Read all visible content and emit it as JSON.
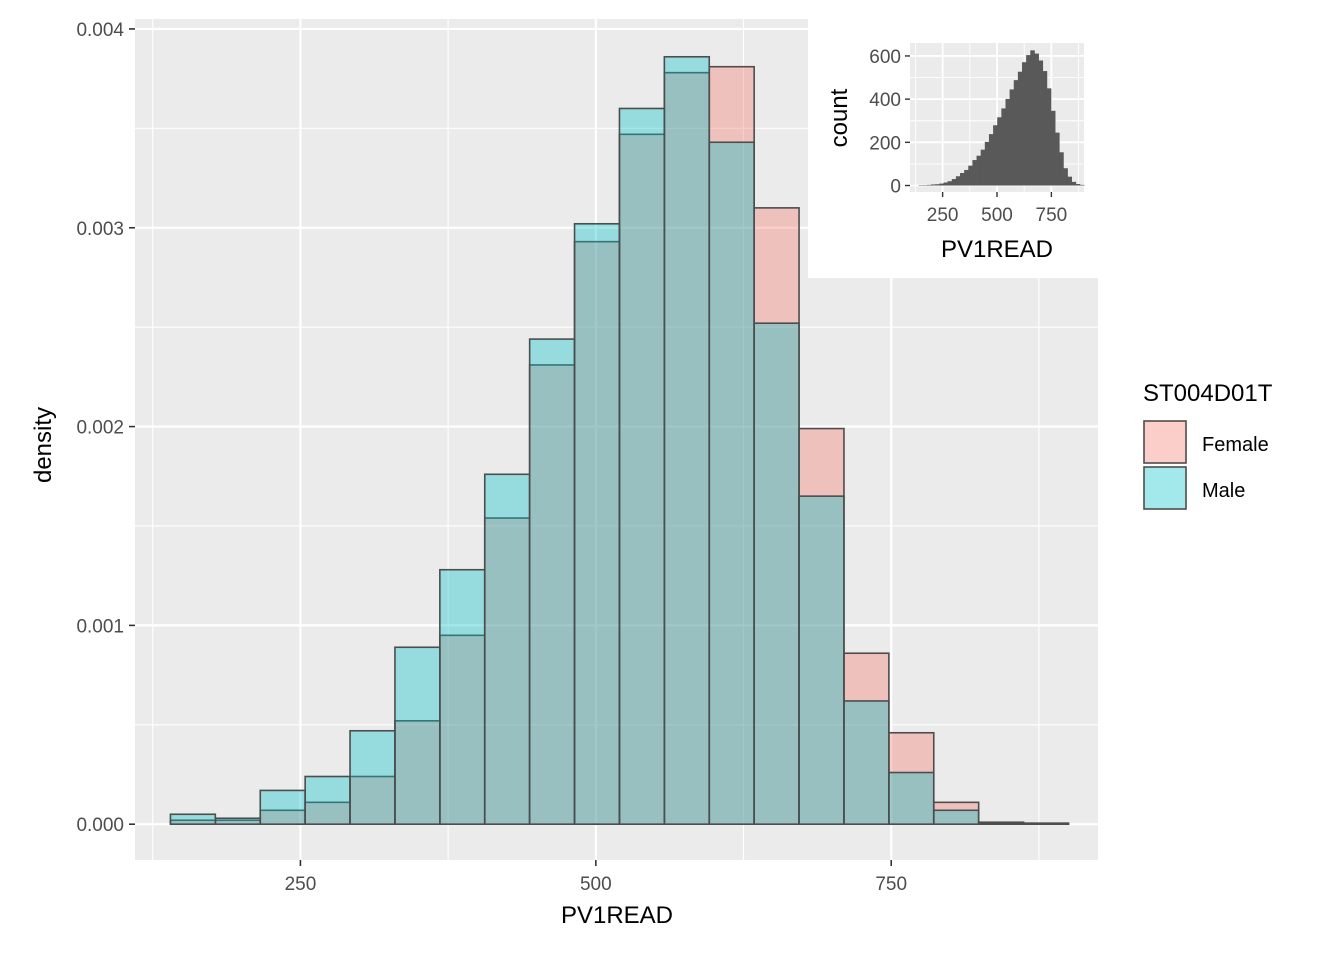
{
  "chart_data": [
    {
      "type": "bar",
      "subtype": "overlapping-density-histogram",
      "xlabel": "PV1READ",
      "ylabel": "density",
      "xlim": [
        110,
        925
      ],
      "ylim": [
        -0.00018,
        0.00405
      ],
      "x_ticks": [
        250,
        500,
        750
      ],
      "x_tick_labels": [
        "250",
        "500",
        "750"
      ],
      "y_ticks": [
        0,
        0.001,
        0.002,
        0.003,
        0.004
      ],
      "y_tick_labels": [
        "0.000",
        "0.001",
        "0.002",
        "0.003",
        "0.004"
      ],
      "grid": true,
      "bin_edges": [
        140,
        178,
        216,
        254,
        292,
        330,
        368,
        406,
        444,
        482,
        520,
        558,
        596,
        634,
        672,
        710,
        748,
        786,
        824,
        862,
        900
      ],
      "series": [
        {
          "name": "Female",
          "color": "#F8766D",
          "values": [
            2e-05,
            2e-05,
            7e-05,
            0.00011,
            0.00024,
            0.00052,
            0.00095,
            0.00154,
            0.00231,
            0.00293,
            0.00347,
            0.00378,
            0.00381,
            0.0031,
            0.00199,
            0.00086,
            0.00046,
            0.00011,
            1e-05,
            5e-06
          ]
        },
        {
          "name": "Male",
          "color": "#00BFC4",
          "values": [
            5e-05,
            3e-05,
            0.00017,
            0.00024,
            0.00047,
            0.00089,
            0.00128,
            0.00176,
            0.00244,
            0.00302,
            0.0036,
            0.00386,
            0.00343,
            0.00252,
            0.00165,
            0.00062,
            0.00026,
            7e-05,
            5e-06,
            5e-06
          ]
        }
      ],
      "legend": {
        "title": "ST004D01T",
        "placement": "right",
        "entries": [
          "Female",
          "Male"
        ]
      }
    },
    {
      "type": "bar",
      "subtype": "count-histogram-inset",
      "placement": "top-right inset",
      "xlabel": "PV1READ",
      "ylabel": "count",
      "xlim": [
        100,
        900
      ],
      "ylim": [
        -30,
        660
      ],
      "x_ticks": [
        250,
        500,
        750
      ],
      "x_tick_labels": [
        "250",
        "500",
        "750"
      ],
      "y_ticks": [
        0,
        200,
        400,
        600
      ],
      "y_tick_labels": [
        "0",
        "200",
        "400",
        "600"
      ],
      "grid": true,
      "bar_color": "#595959",
      "bin_start": 140,
      "bin_width": 19,
      "values": [
        1,
        2,
        3,
        5,
        6,
        9,
        14,
        20,
        30,
        43,
        58,
        72,
        92,
        118,
        138,
        166,
        202,
        238,
        279,
        316,
        357,
        401,
        445,
        488,
        527,
        571,
        604,
        626,
        611,
        579,
        530,
        450,
        346,
        245,
        154,
        80,
        41,
        17,
        7,
        3
      ]
    }
  ]
}
